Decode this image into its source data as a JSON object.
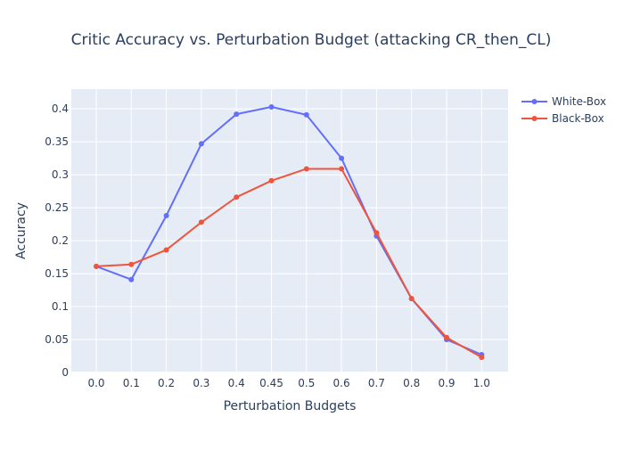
{
  "chart_data": {
    "type": "line",
    "title": "Critic Accuracy vs. Perturbation Budget (attacking CR_then_CL)",
    "xlabel": "Perturbation Budgets",
    "ylabel": "Accuracy",
    "categories": [
      "0.0",
      "0.1",
      "0.2",
      "0.3",
      "0.4",
      "0.45",
      "0.5",
      "0.6",
      "0.7",
      "0.8",
      "0.9",
      "1.0"
    ],
    "ylim": [
      0,
      0.43
    ],
    "yticks": [
      0,
      0.05,
      0.1,
      0.15,
      0.2,
      0.25,
      0.3,
      0.35,
      0.4
    ],
    "ytick_labels": [
      "0",
      "0.05",
      "0.1",
      "0.15",
      "0.2",
      "0.25",
      "0.3",
      "0.35",
      "0.4"
    ],
    "grid": true,
    "legend_position": "top-right",
    "series": [
      {
        "name": "White-Box",
        "color": "#636efa",
        "values": [
          0.161,
          0.141,
          0.238,
          0.347,
          0.392,
          0.403,
          0.391,
          0.325,
          0.207,
          0.112,
          0.05,
          0.027
        ]
      },
      {
        "name": "Black-Box",
        "color": "#ef553b",
        "values": [
          0.161,
          0.164,
          0.186,
          0.228,
          0.266,
          0.291,
          0.309,
          0.309,
          0.212,
          0.112,
          0.053,
          0.023
        ]
      }
    ]
  }
}
